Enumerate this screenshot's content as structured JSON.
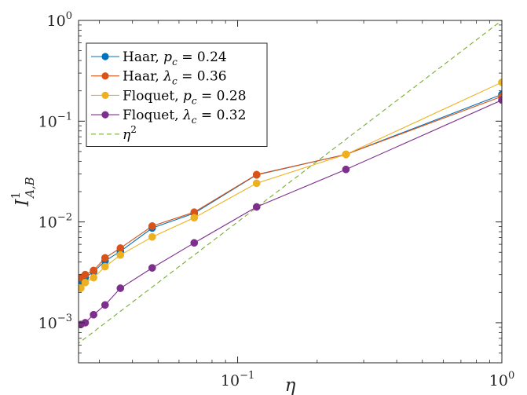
{
  "chart_data": {
    "type": "line",
    "title": "",
    "xlabel": "η",
    "ylabel": {
      "base": "I",
      "superscript": "1",
      "subscript": "A,B"
    },
    "xscale": "log",
    "yscale": "log",
    "xlim": [
      0.025,
      1
    ],
    "ylim": [
      0.0004,
      1
    ],
    "xticks": [
      {
        "value": 0.1,
        "base": "10",
        "exp": "−1"
      },
      {
        "value": 1,
        "base": "10",
        "exp": "0"
      }
    ],
    "yticks": [
      {
        "value": 0.001,
        "base": "10",
        "exp": "−3"
      },
      {
        "value": 0.01,
        "base": "10",
        "exp": "−2"
      },
      {
        "value": 0.1,
        "base": "10",
        "exp": "−1"
      },
      {
        "value": 1,
        "base": "10",
        "exp": "0"
      }
    ],
    "grid": false,
    "legend_position": "top-left",
    "series": [
      {
        "name": "Haar, p_c = 0.24",
        "legend_parts": [
          "Haar, ",
          "p",
          "c",
          " = 0.24"
        ],
        "color": "#0072BD",
        "marker": "circle",
        "x": [
          0.0255,
          0.0265,
          0.0285,
          0.0315,
          0.036,
          0.0475,
          0.0685,
          0.118,
          0.257,
          1.0
        ],
        "y": [
          0.0026,
          0.0028,
          0.0032,
          0.0041,
          0.0051,
          0.0087,
          0.0122,
          0.0293,
          0.0468,
          0.184
        ]
      },
      {
        "name": "Haar, λ_c = 0.36",
        "legend_parts": [
          "Haar, ",
          "λ",
          "c",
          " = 0.36"
        ],
        "color": "#D95319",
        "marker": "circle",
        "x": [
          0.0255,
          0.0265,
          0.0285,
          0.0315,
          0.036,
          0.0475,
          0.0685,
          0.118,
          0.257,
          1.0
        ],
        "y": [
          0.0028,
          0.003,
          0.0033,
          0.0044,
          0.0055,
          0.0091,
          0.0125,
          0.0295,
          0.0468,
          0.176
        ]
      },
      {
        "name": "Floquet, p_c = 0.28",
        "legend_parts": [
          "Floquet, ",
          "p",
          "c",
          " = 0.28"
        ],
        "color": "#EDB120",
        "marker": "circle",
        "x": [
          0.0255,
          0.0265,
          0.0285,
          0.0315,
          0.036,
          0.0475,
          0.0685,
          0.118,
          0.257,
          1.0
        ],
        "y": [
          0.0022,
          0.0025,
          0.0028,
          0.0036,
          0.0047,
          0.0071,
          0.011,
          0.0242,
          0.0468,
          0.243
        ]
      },
      {
        "name": "Floquet, λ_c = 0.32",
        "legend_parts": [
          "Floquet, ",
          "λ",
          "c",
          " = 0.32"
        ],
        "color": "#7E2F8E",
        "marker": "circle",
        "x": [
          0.0255,
          0.0265,
          0.0285,
          0.0315,
          0.036,
          0.0475,
          0.0685,
          0.118,
          0.257,
          1.0
        ],
        "y": [
          0.00096,
          0.001,
          0.0012,
          0.0015,
          0.0022,
          0.0035,
          0.0062,
          0.0141,
          0.0332,
          0.162
        ]
      },
      {
        "name": "η^2",
        "legend_parts": [
          "",
          "η",
          "2",
          ""
        ],
        "color": "#77AC30",
        "marker": "none",
        "dashed": true,
        "x": [
          0.0245,
          1.0
        ],
        "y": [
          0.0006,
          1.0
        ]
      }
    ]
  }
}
